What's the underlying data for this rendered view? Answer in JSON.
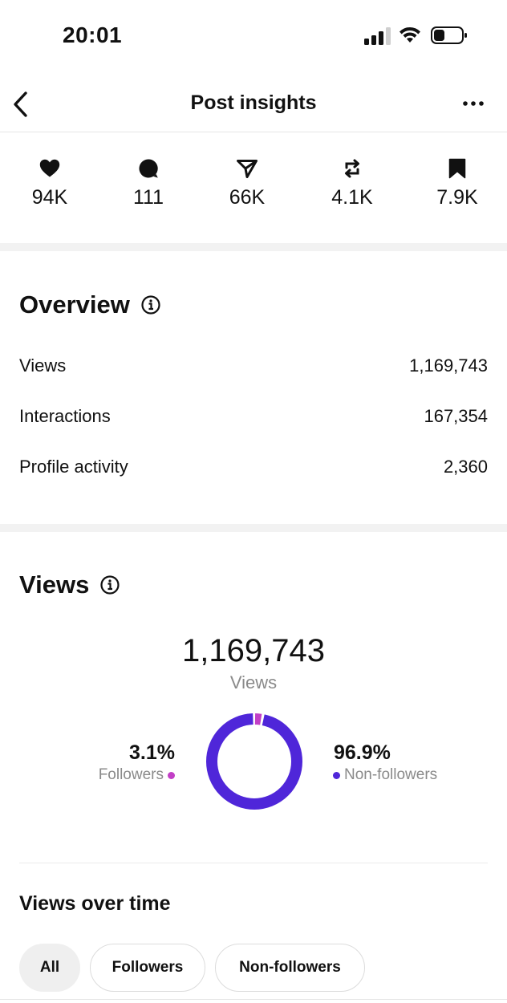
{
  "status_bar": {
    "time": "20:01"
  },
  "header": {
    "title": "Post insights",
    "back_icon": "chevron-left-icon",
    "more_icon": "more-horizontal-icon"
  },
  "engagement": [
    {
      "icon": "heart-icon",
      "value": "94K"
    },
    {
      "icon": "comment-icon",
      "value": "111"
    },
    {
      "icon": "share-icon",
      "value": "66K"
    },
    {
      "icon": "repost-icon",
      "value": "4.1K"
    },
    {
      "icon": "bookmark-icon",
      "value": "7.9K"
    }
  ],
  "overview": {
    "title": "Overview",
    "rows": [
      {
        "label": "Views",
        "value": "1,169,743"
      },
      {
        "label": "Interactions",
        "value": "167,354"
      },
      {
        "label": "Profile activity",
        "value": "2,360"
      }
    ]
  },
  "views": {
    "title": "Views",
    "total": "1,169,743",
    "total_label": "Views",
    "followers": {
      "percent": "3.1%",
      "label": "Followers",
      "color": "#c23fc6",
      "fraction": 0.031
    },
    "non_followers": {
      "percent": "96.9%",
      "label": "Non-followers",
      "color": "#4f26d9",
      "fraction": 0.969
    }
  },
  "views_over_time": {
    "title": "Views over time",
    "filters": [
      {
        "label": "All",
        "active": true
      },
      {
        "label": "Followers",
        "active": false
      },
      {
        "label": "Non-followers",
        "active": false
      }
    ]
  }
}
